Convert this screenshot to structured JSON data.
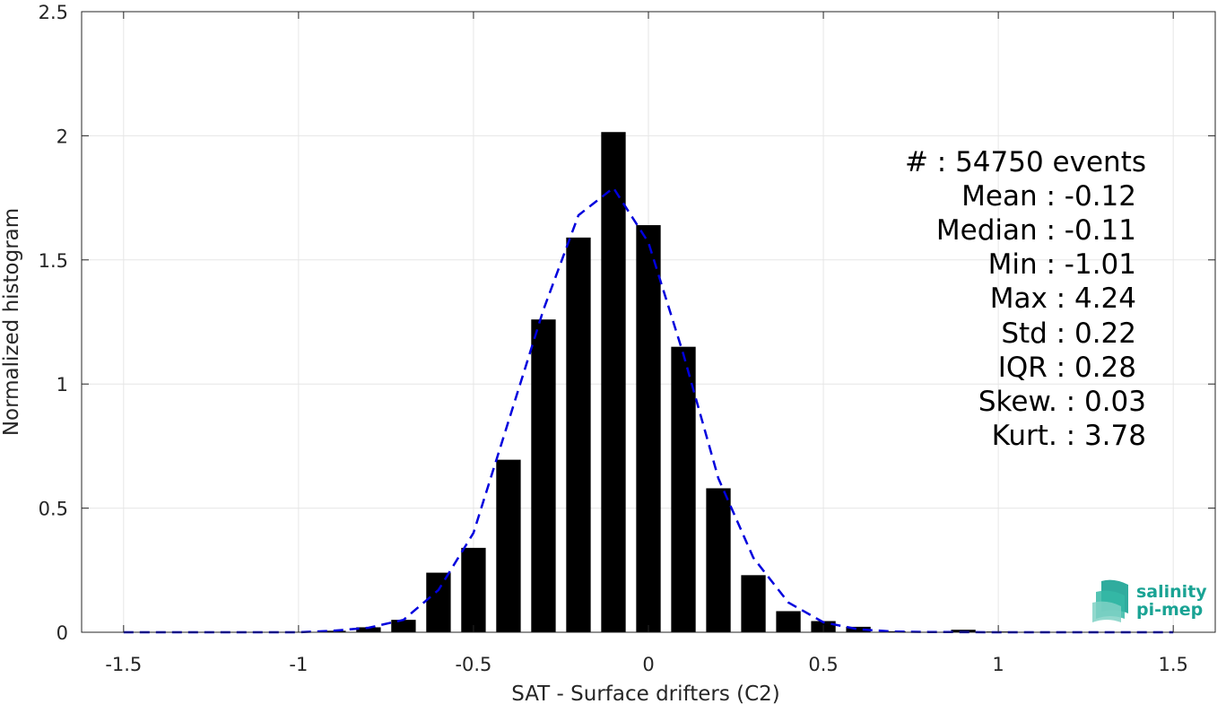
{
  "chart_data": {
    "type": "bar",
    "title": "",
    "xlabel": "SAT - Surface drifters (C2)",
    "ylabel": "Normalized histogram",
    "xlim": [
      -1.62,
      1.62
    ],
    "ylim": [
      0,
      2.5
    ],
    "x_ticks": [
      -1.5,
      -1,
      -0.5,
      0,
      0.5,
      1,
      1.5
    ],
    "x_tick_labels": [
      "-1.5",
      "-1",
      "-0.5",
      "0",
      "0.5",
      "1",
      "1.5"
    ],
    "y_ticks": [
      0,
      0.5,
      1,
      1.5,
      2,
      2.5
    ],
    "y_tick_labels": [
      "0",
      "0.5",
      "1",
      "1.5",
      "2",
      "2.5"
    ],
    "grid": true,
    "bar_width": 0.07,
    "bars": [
      {
        "x": -1.0,
        "y": 0.002
      },
      {
        "x": -0.9,
        "y": 0.006
      },
      {
        "x": -0.8,
        "y": 0.02
      },
      {
        "x": -0.7,
        "y": 0.05
      },
      {
        "x": -0.6,
        "y": 0.24
      },
      {
        "x": -0.5,
        "y": 0.34
      },
      {
        "x": -0.4,
        "y": 0.695
      },
      {
        "x": -0.3,
        "y": 1.26
      },
      {
        "x": -0.2,
        "y": 1.59
      },
      {
        "x": -0.1,
        "y": 2.015
      },
      {
        "x": 0.0,
        "y": 1.64
      },
      {
        "x": 0.1,
        "y": 1.15
      },
      {
        "x": 0.2,
        "y": 0.58
      },
      {
        "x": 0.3,
        "y": 0.23
      },
      {
        "x": 0.4,
        "y": 0.085
      },
      {
        "x": 0.5,
        "y": 0.045
      },
      {
        "x": 0.6,
        "y": 0.022
      },
      {
        "x": 0.7,
        "y": 0.004
      },
      {
        "x": 0.9,
        "y": 0.01
      },
      {
        "x": 1.0,
        "y": 0.003
      }
    ],
    "fit_curve": {
      "style": "dashed",
      "color": "#0000dd",
      "x": [
        -1.5,
        -1.0,
        -0.9,
        -0.8,
        -0.7,
        -0.6,
        -0.5,
        -0.4,
        -0.3,
        -0.2,
        -0.1,
        0.0,
        0.1,
        0.2,
        0.3,
        0.4,
        0.5,
        0.6,
        0.7,
        0.8,
        1.0,
        1.5
      ],
      "y": [
        0.0,
        0.0,
        0.006,
        0.018,
        0.05,
        0.17,
        0.4,
        0.85,
        1.3,
        1.68,
        1.79,
        1.57,
        1.12,
        0.62,
        0.3,
        0.12,
        0.04,
        0.012,
        0.003,
        0.001,
        0.0,
        0.0
      ]
    },
    "stats": {
      "count": "#  : 54750 events",
      "mean": "Mean : -0.12",
      "median": "Median : -0.11",
      "min": "Min : -1.01",
      "max": "Max : 4.24",
      "std": "Std : 0.22",
      "iqr": "IQR : 0.28",
      "skew": "Skew. : 0.03",
      "kurt": "Kurt. : 3.78"
    }
  },
  "logo": {
    "line1": "salinity",
    "line2": "pi-mep",
    "color": "#1aa394"
  }
}
